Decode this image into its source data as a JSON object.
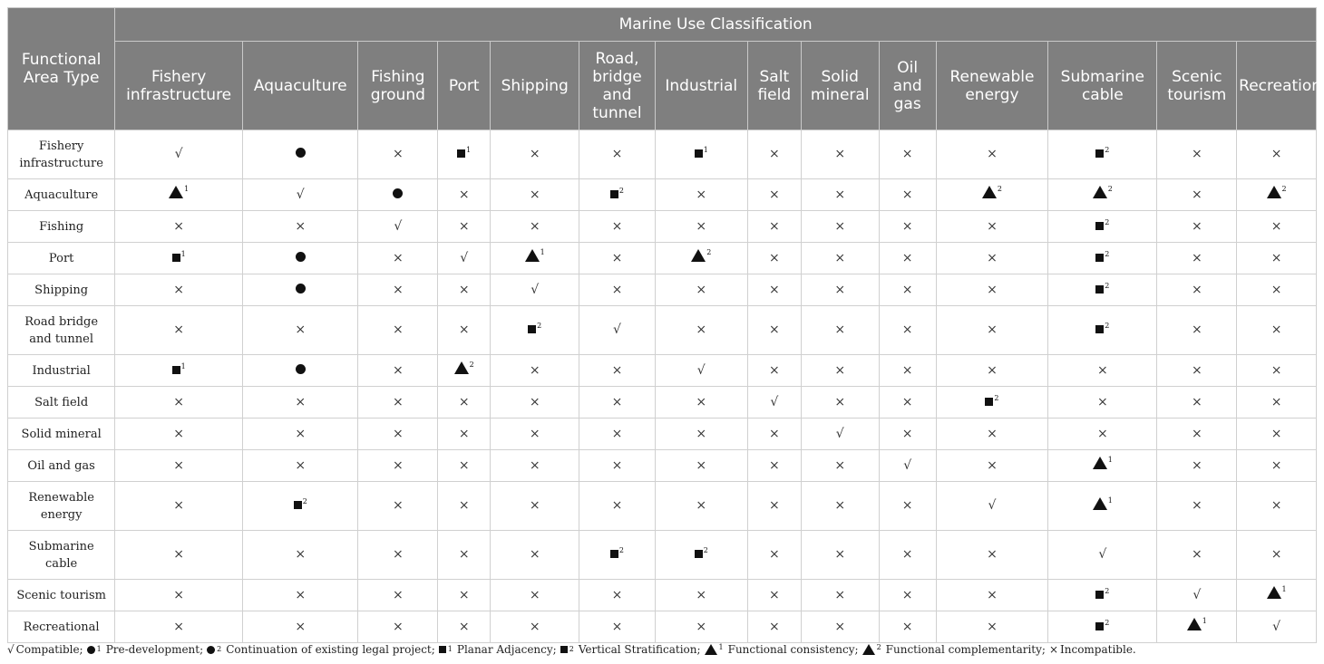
{
  "table": {
    "corner_label": "Functional Area Type",
    "group_header": "Marine Use Classification",
    "columns": [
      "Fishery infrastructure",
      "Aquaculture",
      "Fishing ground",
      "Port",
      "Shipping",
      "Road, bridge and tunnel",
      "Industrial",
      "Salt field",
      "Solid mineral",
      "Oil and gas",
      "Renewable energy",
      "Submarine cable",
      "Scenic tourism",
      "Recreation"
    ],
    "rows": [
      {
        "label": "Fishery infrastructure",
        "cells": [
          "√",
          "●",
          "×",
          "■1",
          "×",
          "×",
          "■1",
          "×",
          "×",
          "×",
          "×",
          "■2",
          "×",
          "×"
        ]
      },
      {
        "label": "Aquaculture",
        "cells": [
          "▲1",
          "√",
          "●",
          "×",
          "×",
          "■2",
          "×",
          "×",
          "×",
          "×",
          "▲2",
          "▲2",
          "×",
          "▲2"
        ]
      },
      {
        "label": "Fishing",
        "cells": [
          "×",
          "×",
          "√",
          "×",
          "×",
          "×",
          "×",
          "×",
          "×",
          "×",
          "×",
          "■2",
          "×",
          "×"
        ]
      },
      {
        "label": "Port",
        "cells": [
          "■1",
          "●",
          "×",
          "√",
          "▲1",
          "×",
          "▲2",
          "×",
          "×",
          "×",
          "×",
          "■2",
          "×",
          "×"
        ]
      },
      {
        "label": "Shipping",
        "cells": [
          "×",
          "●",
          "×",
          "×",
          "√",
          "×",
          "×",
          "×",
          "×",
          "×",
          "×",
          "■2",
          "×",
          "×"
        ]
      },
      {
        "label": "Road bridge and tunnel",
        "cells": [
          "×",
          "×",
          "×",
          "×",
          "■2",
          "√",
          "×",
          "×",
          "×",
          "×",
          "×",
          "■2",
          "×",
          "×"
        ]
      },
      {
        "label": "Industrial",
        "cells": [
          "■1",
          "●",
          "×",
          "▲2",
          "×",
          "×",
          "√",
          "×",
          "×",
          "×",
          "×",
          "×",
          "×",
          "×"
        ]
      },
      {
        "label": "Salt field",
        "cells": [
          "×",
          "×",
          "×",
          "×",
          "×",
          "×",
          "×",
          "√",
          "×",
          "×",
          "■2",
          "×",
          "×",
          "×"
        ]
      },
      {
        "label": "Solid mineral",
        "cells": [
          "×",
          "×",
          "×",
          "×",
          "×",
          "×",
          "×",
          "×",
          "√",
          "×",
          "×",
          "×",
          "×",
          "×"
        ]
      },
      {
        "label": "Oil and gas",
        "cells": [
          "×",
          "×",
          "×",
          "×",
          "×",
          "×",
          "×",
          "×",
          "×",
          "√",
          "×",
          "▲1",
          "×",
          "×"
        ]
      },
      {
        "label": "Renewable energy",
        "cells": [
          "×",
          "■2",
          "×",
          "×",
          "×",
          "×",
          "×",
          "×",
          "×",
          "×",
          "√",
          "▲1",
          "×",
          "×"
        ]
      },
      {
        "label": "Submarine cable",
        "cells": [
          "×",
          "×",
          "×",
          "×",
          "×",
          "■2",
          "■2",
          "×",
          "×",
          "×",
          "×",
          "√",
          "×",
          "×"
        ]
      },
      {
        "label": "Scenic tourism",
        "cells": [
          "×",
          "×",
          "×",
          "×",
          "×",
          "×",
          "×",
          "×",
          "×",
          "×",
          "×",
          "■2",
          "√",
          "▲1"
        ]
      },
      {
        "label": "Recreational",
        "cells": [
          "×",
          "×",
          "×",
          "×",
          "×",
          "×",
          "×",
          "×",
          "×",
          "×",
          "×",
          "■2",
          "▲1",
          "√"
        ]
      }
    ]
  },
  "legend": [
    {
      "symbol": "√",
      "sup": "",
      "label": "Compatible;"
    },
    {
      "symbol": "●",
      "sup": "1",
      "label": "Pre-development;"
    },
    {
      "symbol": "●",
      "sup": "2",
      "label": "Continuation of existing legal project;"
    },
    {
      "symbol": "■",
      "sup": "1",
      "label": "Planar Adjacency;"
    },
    {
      "symbol": "■",
      "sup": "2",
      "label": "Vertical Stratification;"
    },
    {
      "symbol": "▲",
      "sup": "1",
      "label": "Functional consistency;"
    },
    {
      "symbol": "▲",
      "sup": "2",
      "label": "Functional complementarity;"
    },
    {
      "symbol": "×",
      "sup": "",
      "label": "Incompatible."
    }
  ]
}
